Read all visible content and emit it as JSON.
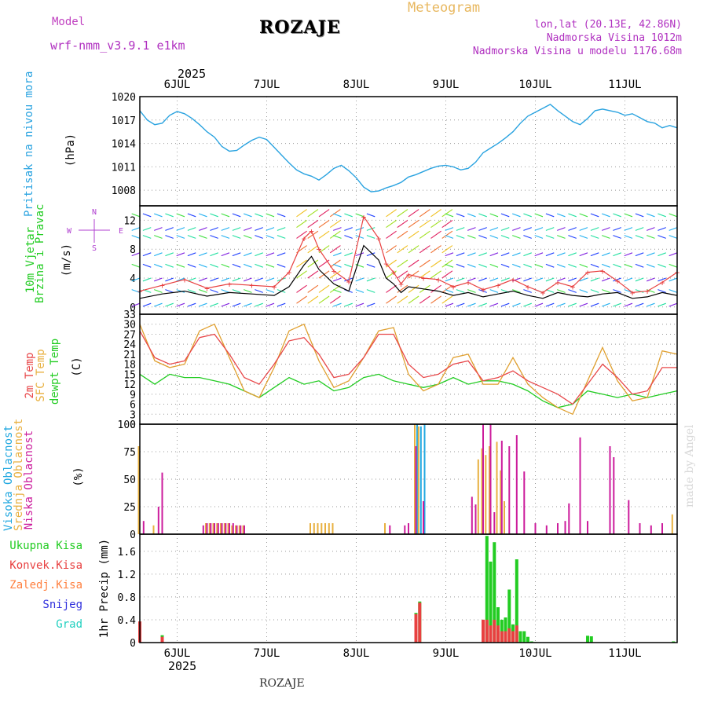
{
  "header": {
    "model_label": "Model",
    "model_name": "wrf-nmm_v3.9.1 e1km",
    "station": "ROZAJE",
    "meteogram_label": "Meteogram",
    "lonlat": "lon,lat (20.13E, 42.86N)",
    "elevation": "Nadmorska Visina 1012m",
    "model_elevation": "Nadmorska Visina u modelu 1176.68m",
    "year": "2025",
    "footer_station": "ROZAJE",
    "credit": "made by Angel"
  },
  "colors": {
    "pressure": "#2aa3e0",
    "temp2m": "#e8484a",
    "sfc": "#e0a030",
    "dew": "#22cc22",
    "high_cloud": "#22a8e0",
    "mid_cloud": "#e8b040",
    "low_cloud": "#cc1c9c",
    "total_precip": "#22cc22",
    "conv_precip": "#e84040",
    "frozen": "#ff8040",
    "snow": "#3030dd",
    "hail": "#22d0c0",
    "wind_avg": "#000000",
    "wind_gust": "#e84040"
  },
  "chart_data": [
    {
      "type": "line",
      "id": "pressure",
      "ylabel": "Pritisak na nivou mora",
      "unit": "(hPa)",
      "ylim": [
        1006,
        1020
      ],
      "yticks": [
        1008,
        1011,
        1014,
        1017,
        1020
      ],
      "grid": true,
      "x_day_labels": [
        "6JUL",
        "7JUL",
        "8JUL",
        "9JUL",
        "10JUL",
        "11JUL"
      ],
      "series": [
        {
          "name": "Pritisak na nivou mora",
          "x": [
            0,
            2,
            4,
            6,
            8,
            10,
            12,
            14,
            16,
            18,
            20,
            22,
            24,
            26,
            28,
            30,
            32,
            34,
            36,
            38,
            40,
            42,
            44,
            46,
            48,
            50,
            52,
            54,
            56,
            58,
            60,
            62,
            64,
            66,
            68,
            70,
            72,
            74,
            76,
            78,
            80,
            82,
            84,
            86,
            88,
            90,
            92,
            94,
            96,
            98,
            100,
            102,
            104,
            106,
            108,
            110,
            112,
            114,
            116,
            118,
            120,
            122,
            124,
            126,
            128,
            130,
            132,
            134,
            136,
            138,
            140,
            142,
            144
          ],
          "y": [
            1018.2,
            1017,
            1016.4,
            1016.6,
            1017.6,
            1018.1,
            1017.8,
            1017.2,
            1016.4,
            1015.5,
            1014.8,
            1013.6,
            1013,
            1013.1,
            1013.8,
            1014.4,
            1014.8,
            1014.5,
            1013.5,
            1012.5,
            1011.5,
            1010.6,
            1010.1,
            1009.8,
            1009.3,
            1010,
            1010.8,
            1011.2,
            1010.5,
            1009.6,
            1008.4,
            1007.8,
            1007.9,
            1008.3,
            1008.6,
            1009,
            1009.7,
            1010,
            1010.4,
            1010.8,
            1011.1,
            1011.2,
            1011.0,
            1010.6,
            1010.8,
            1011.6,
            1012.8,
            1013.4,
            1014,
            1014.7,
            1015.5,
            1016.6,
            1017.5,
            1018.0,
            1018.5,
            1019.0,
            1018.2,
            1017.5,
            1016.8,
            1016.4,
            1017.2,
            1018.2,
            1018.4,
            1018.2,
            1018.0,
            1017.6,
            1017.8,
            1017.3,
            1016.8,
            1016.6,
            1016.0,
            1016.3,
            1016
          ]
        }
      ]
    },
    {
      "type": "line",
      "id": "wind",
      "ylabel": "10m Vjetar Brzina i Pravac",
      "unit": "(m/s)",
      "ylim": [
        -1,
        14
      ],
      "yticks": [
        0,
        4,
        8,
        12
      ],
      "compass": {
        "n": "N",
        "s": "S",
        "w": "W",
        "e": "E"
      },
      "grid": true,
      "series": [
        {
          "name": "avg",
          "x": [
            0,
            6,
            12,
            18,
            24,
            30,
            36,
            40,
            44,
            46,
            48,
            52,
            56,
            60,
            64,
            66,
            68,
            70,
            72,
            76,
            80,
            84,
            88,
            92,
            96,
            100,
            104,
            108,
            112,
            116,
            120,
            124,
            128,
            132,
            136,
            140,
            144
          ],
          "y": [
            1.2,
            1.8,
            2.2,
            1.5,
            2.0,
            1.8,
            1.6,
            2.8,
            5.8,
            7.0,
            5.2,
            3.2,
            2.2,
            8.5,
            6.5,
            4.0,
            3.2,
            2.0,
            2.8,
            2.5,
            2.2,
            1.6,
            2.0,
            1.4,
            1.8,
            2.2,
            1.6,
            1.2,
            2.0,
            1.6,
            1.4,
            1.8,
            2.0,
            1.2,
            1.4,
            2.0,
            1.6
          ]
        },
        {
          "name": "gust",
          "x": [
            0,
            6,
            12,
            18,
            24,
            30,
            36,
            40,
            44,
            46,
            48,
            52,
            56,
            60,
            64,
            66,
            68,
            70,
            72,
            76,
            80,
            84,
            88,
            92,
            96,
            100,
            104,
            108,
            112,
            116,
            120,
            124,
            128,
            132,
            136,
            140,
            144
          ],
          "y": [
            2.2,
            3.0,
            3.8,
            2.6,
            3.2,
            3.0,
            2.8,
            4.8,
            9.5,
            10.5,
            8.0,
            5.0,
            3.5,
            12.5,
            9.5,
            6.0,
            4.8,
            3.2,
            4.5,
            4.0,
            3.8,
            2.8,
            3.4,
            2.4,
            3.0,
            3.8,
            2.8,
            2.0,
            3.4,
            2.8,
            4.8,
            5.0,
            3.6,
            2.0,
            2.2,
            3.4,
            4.8
          ]
        }
      ]
    },
    {
      "type": "line",
      "id": "temperature",
      "ylabel": [
        "2m Temp",
        "SFC Temp",
        "dewpt Temp"
      ],
      "unit": "(C)",
      "ylim": [
        0,
        33
      ],
      "yticks": [
        0,
        3,
        6,
        9,
        12,
        15,
        18,
        21,
        24,
        27,
        30,
        33
      ],
      "grid": true,
      "series": [
        {
          "name": "2m Temp",
          "x": [
            0,
            4,
            8,
            12,
            16,
            20,
            24,
            28,
            32,
            36,
            40,
            44,
            48,
            52,
            56,
            60,
            64,
            68,
            72,
            76,
            80,
            84,
            88,
            92,
            96,
            100,
            104,
            108,
            112,
            116,
            120,
            124,
            128,
            132,
            136,
            140,
            144
          ],
          "y": [
            28,
            20,
            18,
            19,
            26,
            27,
            21,
            14,
            12,
            18,
            25,
            26,
            21,
            14,
            15,
            20,
            27,
            27,
            18,
            14,
            15,
            18,
            19,
            13,
            14,
            16,
            13,
            11,
            9,
            6,
            12,
            18,
            14,
            9,
            10,
            17,
            17
          ]
        },
        {
          "name": "SFC Temp",
          "x": [
            0,
            4,
            8,
            12,
            16,
            20,
            24,
            28,
            32,
            36,
            40,
            44,
            48,
            52,
            56,
            60,
            64,
            68,
            72,
            76,
            80,
            84,
            88,
            92,
            96,
            100,
            104,
            108,
            112,
            116,
            120,
            124,
            128,
            132,
            136,
            140,
            144
          ],
          "y": [
            30,
            19,
            17,
            18,
            28,
            30,
            20,
            10,
            8,
            17,
            28,
            30,
            19,
            11,
            13,
            20,
            28,
            29,
            15,
            10,
            12,
            20,
            21,
            12,
            12,
            20,
            12,
            8,
            5,
            3,
            13,
            23,
            13,
            7,
            8,
            22,
            21
          ]
        },
        {
          "name": "dewpt Temp",
          "x": [
            0,
            4,
            8,
            12,
            16,
            20,
            24,
            28,
            32,
            36,
            40,
            44,
            48,
            52,
            56,
            60,
            64,
            68,
            72,
            76,
            80,
            84,
            88,
            92,
            96,
            100,
            104,
            108,
            112,
            116,
            120,
            124,
            128,
            132,
            136,
            140,
            144
          ],
          "y": [
            15,
            12,
            15,
            14,
            14,
            13,
            12,
            10,
            8,
            11,
            14,
            12,
            13,
            10,
            11,
            14,
            15,
            13,
            12,
            11,
            12,
            14,
            12,
            13,
            13,
            12,
            10,
            7,
            5,
            6,
            10,
            9,
            8,
            9,
            8,
            9,
            10
          ]
        }
      ]
    },
    {
      "type": "bar",
      "id": "clouds",
      "ylabel": [
        "Visoka Oblacnost",
        "Srednja Oblacnost",
        "Niska Oblacnost"
      ],
      "unit": "(%)",
      "ylim": [
        0,
        100
      ],
      "yticks": [
        0,
        25,
        50,
        75,
        100
      ],
      "grid": true,
      "series": [
        {
          "name": "Visoka Oblacnost",
          "x": [
            74,
            75,
            76
          ],
          "values": [
            100,
            98,
            100
          ]
        },
        {
          "name": "Srednja Oblacnost",
          "x": [
            0,
            4,
            18,
            19,
            20,
            21,
            22,
            23,
            24,
            25,
            26,
            27,
            28,
            46,
            47,
            48,
            49,
            50,
            51,
            52,
            66,
            74,
            75,
            91,
            92,
            93,
            94,
            96,
            97,
            98,
            143
          ],
          "values": [
            80,
            8,
            10,
            10,
            10,
            10,
            10,
            10,
            10,
            8,
            8,
            8,
            8,
            10,
            10,
            10,
            10,
            10,
            10,
            10,
            10,
            100,
            98,
            68,
            78,
            72,
            80,
            84,
            58,
            30,
            18
          ]
        },
        {
          "name": "Niska Oblacnost",
          "x": [
            1,
            5,
            6,
            17,
            18,
            19,
            20,
            21,
            22,
            23,
            24,
            25,
            26,
            27,
            28,
            67,
            71,
            72,
            74,
            76,
            89,
            90,
            92,
            94,
            95,
            97,
            99,
            101,
            103,
            106,
            109,
            112,
            114,
            115,
            118,
            120,
            126,
            127,
            131,
            134,
            137,
            140
          ],
          "values": [
            12,
            25,
            56,
            8,
            10,
            10,
            10,
            10,
            10,
            10,
            10,
            10,
            8,
            8,
            8,
            8,
            8,
            10,
            80,
            30,
            34,
            27,
            100,
            100,
            20,
            85,
            80,
            90,
            57,
            10,
            8,
            10,
            12,
            28,
            88,
            12,
            80,
            70,
            31,
            10,
            8,
            10
          ]
        }
      ]
    },
    {
      "type": "bar",
      "id": "precip",
      "legend": [
        "Ukupna Kisa",
        "Konvek.Kisa",
        "Zaledj.Kisa",
        "Snijeg",
        "Grad"
      ],
      "ylabel": "1hr Precip",
      "unit": "(mm)",
      "ylim": [
        0,
        1.9
      ],
      "yticks": [
        0,
        0.4,
        0.8,
        1.2,
        1.6
      ],
      "grid": true,
      "series": [
        {
          "name": "Ukupna Kisa",
          "x": [
            0,
            6,
            74,
            75,
            92,
            93,
            94,
            95,
            96,
            97,
            98,
            99,
            100,
            101,
            102,
            103,
            104,
            105,
            106,
            120,
            121,
            143
          ],
          "values": [
            0.37,
            0.13,
            0.52,
            0.72,
            0.4,
            1.87,
            1.42,
            1.76,
            0.62,
            0.4,
            0.44,
            0.93,
            0.32,
            1.46,
            0.2,
            0.2,
            0.1,
            0.02,
            0.01,
            0.12,
            0.11,
            0.02
          ]
        },
        {
          "name": "Konvek.Kisa",
          "x": [
            0,
            6,
            74,
            75,
            92,
            93,
            94,
            95,
            96,
            97,
            98,
            99,
            100,
            101
          ],
          "values": [
            0.37,
            0.1,
            0.5,
            0.7,
            0.4,
            0.4,
            0.3,
            0.4,
            0.3,
            0.2,
            0.2,
            0.25,
            0.2,
            0.3
          ]
        }
      ]
    }
  ]
}
